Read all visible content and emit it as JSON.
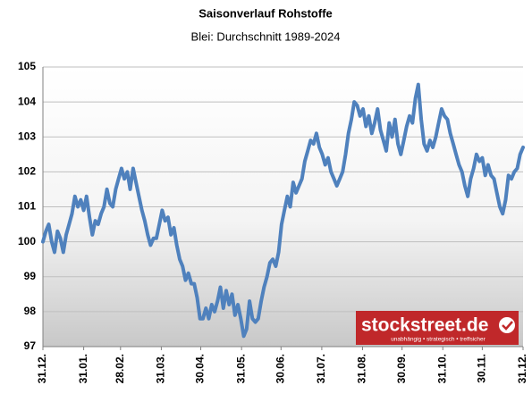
{
  "chart_data": {
    "type": "line",
    "title": "Saisonverlauf Rohstoffe",
    "subtitle": "Blei: Durchschnitt 1989-2024",
    "xlim": [
      0,
      365
    ],
    "xticks": [
      {
        "value": 0,
        "label": "31.12."
      },
      {
        "value": 31,
        "label": "31.01."
      },
      {
        "value": 59,
        "label": "28.02."
      },
      {
        "value": 90,
        "label": "31.03."
      },
      {
        "value": 120,
        "label": "30.04."
      },
      {
        "value": 151,
        "label": "31.05."
      },
      {
        "value": 181,
        "label": "30.06."
      },
      {
        "value": 212,
        "label": "31.07."
      },
      {
        "value": 243,
        "label": "31.08."
      },
      {
        "value": 273,
        "label": "30.09."
      },
      {
        "value": 304,
        "label": "31.10."
      },
      {
        "value": 334,
        "label": "30.11."
      },
      {
        "value": 365,
        "label": "31.12."
      }
    ],
    "ylim": [
      97,
      105
    ],
    "yticks": [
      97,
      98,
      99,
      100,
      101,
      102,
      103,
      104,
      105
    ],
    "grid": true,
    "series": [
      {
        "color": "#4f81bd",
        "values": [
          100.0,
          100.3,
          100.5,
          100.0,
          99.7,
          100.3,
          100.1,
          99.7,
          100.2,
          100.5,
          100.8,
          101.3,
          101.0,
          101.2,
          100.9,
          101.3,
          100.7,
          100.2,
          100.6,
          100.5,
          100.8,
          101.0,
          101.5,
          101.1,
          101.0,
          101.5,
          101.8,
          102.1,
          101.8,
          102.0,
          101.5,
          102.1,
          101.7,
          101.3,
          100.9,
          100.6,
          100.2,
          99.9,
          100.1,
          100.1,
          100.5,
          100.9,
          100.6,
          100.7,
          100.2,
          100.4,
          99.9,
          99.5,
          99.3,
          98.9,
          99.1,
          98.8,
          98.8,
          98.4,
          97.8,
          97.8,
          98.1,
          97.8,
          98.2,
          98.0,
          98.3,
          98.7,
          98.1,
          98.6,
          98.2,
          98.5,
          97.9,
          98.2,
          97.8,
          97.3,
          97.5,
          98.3,
          97.8,
          97.7,
          97.8,
          98.3,
          98.7,
          99.0,
          99.4,
          99.5,
          99.3,
          99.7,
          100.5,
          100.9,
          101.3,
          101.0,
          101.7,
          101.4,
          101.6,
          101.8,
          102.3,
          102.6,
          102.9,
          102.8,
          103.1,
          102.7,
          102.5,
          102.2,
          102.4,
          102.0,
          101.8,
          101.6,
          101.8,
          102.0,
          102.5,
          103.1,
          103.5,
          104.0,
          103.9,
          103.6,
          103.8,
          103.3,
          103.6,
          103.1,
          103.4,
          103.8,
          103.2,
          102.9,
          102.6,
          103.4,
          103.0,
          103.5,
          102.8,
          102.5,
          102.9,
          103.3,
          103.6,
          103.4,
          104.1,
          104.5,
          103.5,
          102.8,
          102.6,
          102.9,
          102.7,
          103.0,
          103.4,
          103.8,
          103.6,
          103.5,
          103.1,
          102.8,
          102.5,
          102.2,
          102.0,
          101.6,
          101.3,
          101.8,
          102.1,
          102.5,
          102.3,
          102.4,
          101.9,
          102.2,
          101.9,
          101.8,
          101.4,
          101.0,
          100.8,
          101.2,
          101.9,
          101.8,
          102.0,
          102.1,
          102.5,
          102.7
        ]
      }
    ],
    "logo": {
      "name": "stockstreet.de",
      "tagline": "unabhängig • strategisch • treffsicher"
    }
  }
}
